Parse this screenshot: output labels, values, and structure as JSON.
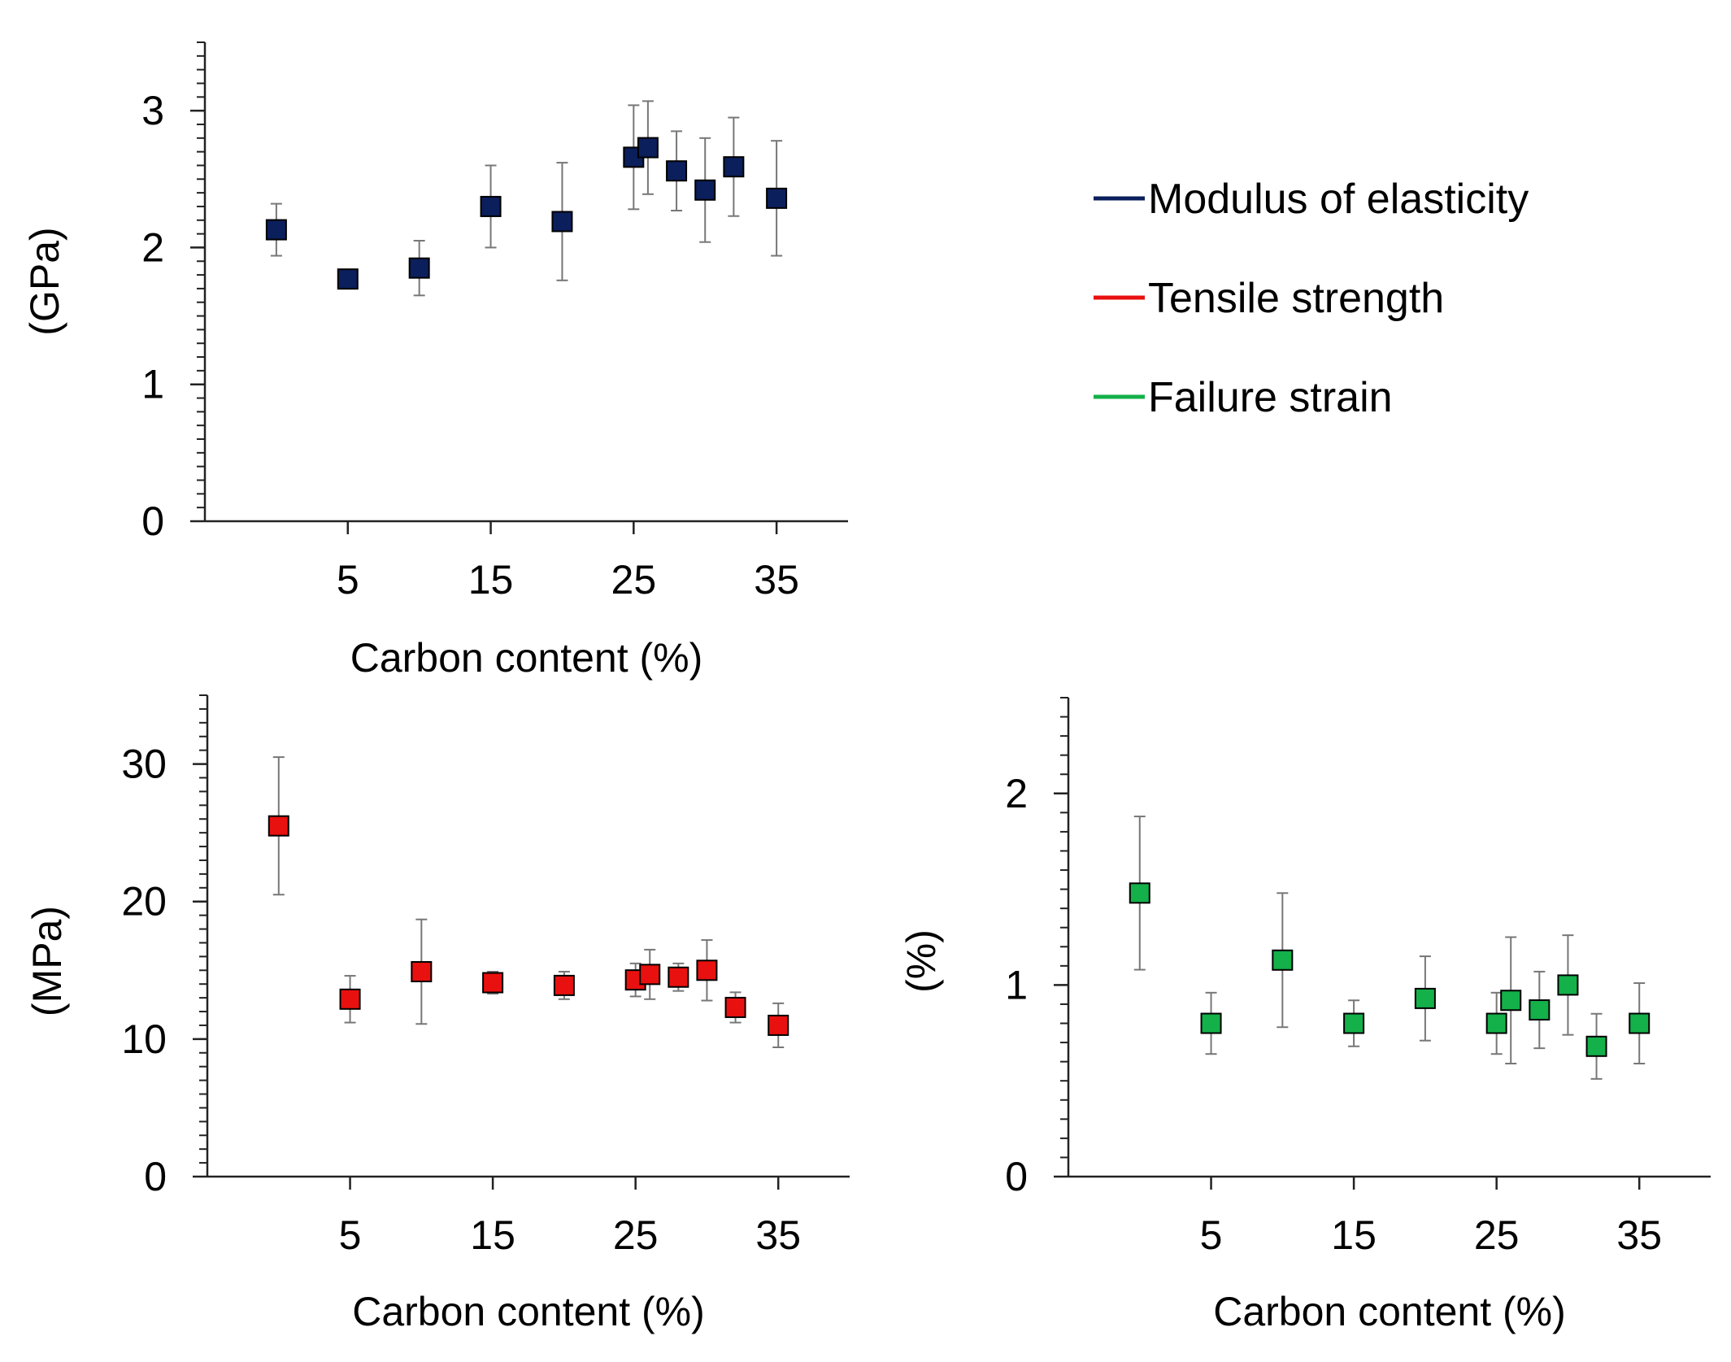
{
  "chart_data": [
    {
      "id": "modulus",
      "type": "scatter",
      "x_label": "Carbon content (%)",
      "y_label": "(GPa)",
      "x_ticks": [
        "5",
        "15",
        "25",
        "35"
      ],
      "y_ticks": [
        "0",
        "1",
        "2",
        "3"
      ],
      "xlim": [
        -5,
        40
      ],
      "ylim": [
        0,
        3.5
      ],
      "y_minor_step": 0.1,
      "color": "#0b1f5c",
      "points": [
        {
          "x": 0,
          "y": 2.13,
          "err": 0.19
        },
        {
          "x": 5,
          "y": 1.77,
          "err": 0
        },
        {
          "x": 10,
          "y": 1.85,
          "err": 0.2
        },
        {
          "x": 15,
          "y": 2.3,
          "err": 0.3
        },
        {
          "x": 20,
          "y": 2.19,
          "err": 0.43
        },
        {
          "x": 25,
          "y": 2.66,
          "err": 0.38
        },
        {
          "x": 26,
          "y": 2.73,
          "err": 0.34
        },
        {
          "x": 28,
          "y": 2.56,
          "err": 0.29
        },
        {
          "x": 30,
          "y": 2.42,
          "err": 0.38
        },
        {
          "x": 32,
          "y": 2.59,
          "err": 0.36
        },
        {
          "x": 35,
          "y": 2.36,
          "err": 0.42
        }
      ]
    },
    {
      "id": "tensile",
      "type": "scatter",
      "x_label": "Carbon content (%)",
      "y_label": "(MPa)",
      "x_ticks": [
        "5",
        "15",
        "25",
        "35"
      ],
      "y_ticks": [
        "0",
        "10",
        "20",
        "30"
      ],
      "xlim": [
        -5,
        40
      ],
      "ylim": [
        0,
        35
      ],
      "y_minor_step": 1,
      "color": "#e8110f",
      "points": [
        {
          "x": 0,
          "y": 25.5,
          "err": 5.0
        },
        {
          "x": 5,
          "y": 12.9,
          "err": 1.7
        },
        {
          "x": 10,
          "y": 14.9,
          "err": 3.8
        },
        {
          "x": 15,
          "y": 14.1,
          "err": 0.8
        },
        {
          "x": 20,
          "y": 13.9,
          "err": 1.0
        },
        {
          "x": 25,
          "y": 14.3,
          "err": 1.2
        },
        {
          "x": 26,
          "y": 14.7,
          "err": 1.8
        },
        {
          "x": 28,
          "y": 14.5,
          "err": 1.0
        },
        {
          "x": 30,
          "y": 15.0,
          "err": 2.2
        },
        {
          "x": 32,
          "y": 12.3,
          "err": 1.1
        },
        {
          "x": 35,
          "y": 11.0,
          "err": 1.6
        }
      ]
    },
    {
      "id": "strain",
      "type": "scatter",
      "x_label": "Carbon content (%)",
      "y_label": "(%)",
      "x_ticks": [
        "5",
        "15",
        "25",
        "35"
      ],
      "y_ticks": [
        "0",
        "1",
        "2"
      ],
      "xlim": [
        -5,
        40
      ],
      "ylim": [
        0,
        2.5
      ],
      "y_minor_step": 0.1,
      "color": "#14b04a",
      "points": [
        {
          "x": 0,
          "y": 1.48,
          "err": 0.4
        },
        {
          "x": 5,
          "y": 0.8,
          "err": 0.16
        },
        {
          "x": 10,
          "y": 1.13,
          "err": 0.35
        },
        {
          "x": 15,
          "y": 0.8,
          "err": 0.12
        },
        {
          "x": 20,
          "y": 0.93,
          "err": 0.22
        },
        {
          "x": 25,
          "y": 0.8,
          "err": 0.16
        },
        {
          "x": 26,
          "y": 0.92,
          "err": 0.33
        },
        {
          "x": 28,
          "y": 0.87,
          "err": 0.2
        },
        {
          "x": 30,
          "y": 1.0,
          "err": 0.26
        },
        {
          "x": 32,
          "y": 0.68,
          "err": 0.17
        },
        {
          "x": 35,
          "y": 0.8,
          "err": 0.21
        }
      ]
    }
  ],
  "legend": {
    "items": [
      {
        "label": "Modulus of elasticity",
        "color": "#0b1f5c"
      },
      {
        "label": "Tensile strength",
        "color": "#e8110f"
      },
      {
        "label": "Failure strain",
        "color": "#14b04a"
      }
    ]
  }
}
